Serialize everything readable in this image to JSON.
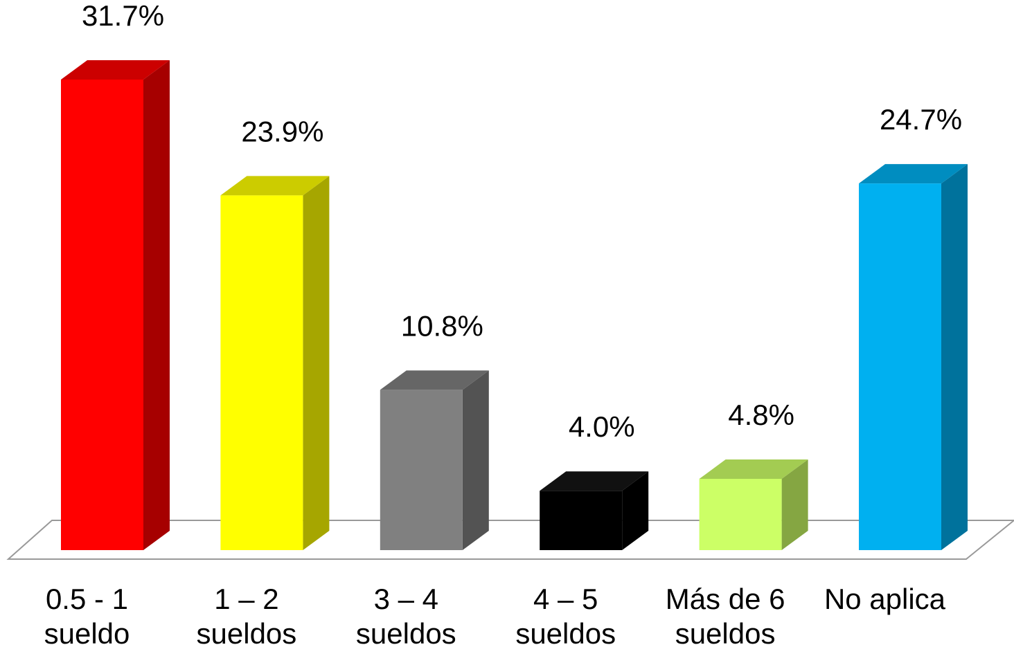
{
  "chart_data": {
    "type": "bar3d",
    "categories": [
      [
        "0.5 - 1",
        "sueldo"
      ],
      [
        "1 – 2",
        "sueldos"
      ],
      [
        "3 – 4",
        "sueldos"
      ],
      [
        "4 – 5",
        "sueldos"
      ],
      [
        "Más de 6",
        "sueldos"
      ],
      [
        "No aplica"
      ]
    ],
    "values": [
      31.7,
      23.9,
      10.8,
      4.0,
      4.8,
      24.7
    ],
    "value_labels": [
      "31.7%",
      "23.9%",
      "10.8%",
      "4.0%",
      "4.8%",
      "24.7%"
    ],
    "colors": [
      "#ff0000",
      "#ffff00",
      "#808080",
      "#000000",
      "#ccff66",
      "#00b0f0"
    ]
  }
}
